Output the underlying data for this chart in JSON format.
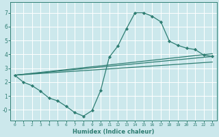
{
  "xlabel": "Humidex (Indice chaleur)",
  "ylabel": "",
  "bg_color": "#cce8ec",
  "grid_color": "#ffffff",
  "line_color": "#2e7d72",
  "marker_color": "#2e7d72",
  "xlim": [
    -0.5,
    23.5
  ],
  "ylim": [
    -0.75,
    7.75
  ],
  "xticks": [
    0,
    1,
    2,
    3,
    4,
    5,
    6,
    7,
    8,
    9,
    10,
    11,
    12,
    13,
    14,
    15,
    16,
    17,
    18,
    19,
    20,
    21,
    22,
    23
  ],
  "yticks": [
    0,
    1,
    2,
    3,
    4,
    5,
    6,
    7
  ],
  "ytick_labels": [
    "-0",
    "1",
    "2",
    "3",
    "4",
    "5",
    "6",
    "7"
  ],
  "curve_x": [
    0,
    1,
    2,
    3,
    4,
    5,
    6,
    7,
    8,
    9,
    10,
    11,
    12,
    13,
    14,
    15,
    16,
    17,
    18,
    19,
    20,
    21,
    22,
    23
  ],
  "curve_y": [
    2.5,
    2.0,
    1.75,
    1.35,
    0.85,
    0.65,
    0.25,
    -0.2,
    -0.45,
    -0.05,
    1.4,
    3.8,
    4.6,
    5.85,
    7.0,
    7.0,
    6.75,
    6.35,
    4.95,
    4.65,
    4.45,
    4.35,
    3.95,
    3.85
  ],
  "line1_x": [
    0,
    23
  ],
  "line1_y": [
    2.5,
    4.05
  ],
  "line2_x": [
    0,
    23
  ],
  "line2_y": [
    2.5,
    3.85
  ],
  "line3_x": [
    0,
    23
  ],
  "line3_y": [
    2.5,
    3.45
  ]
}
